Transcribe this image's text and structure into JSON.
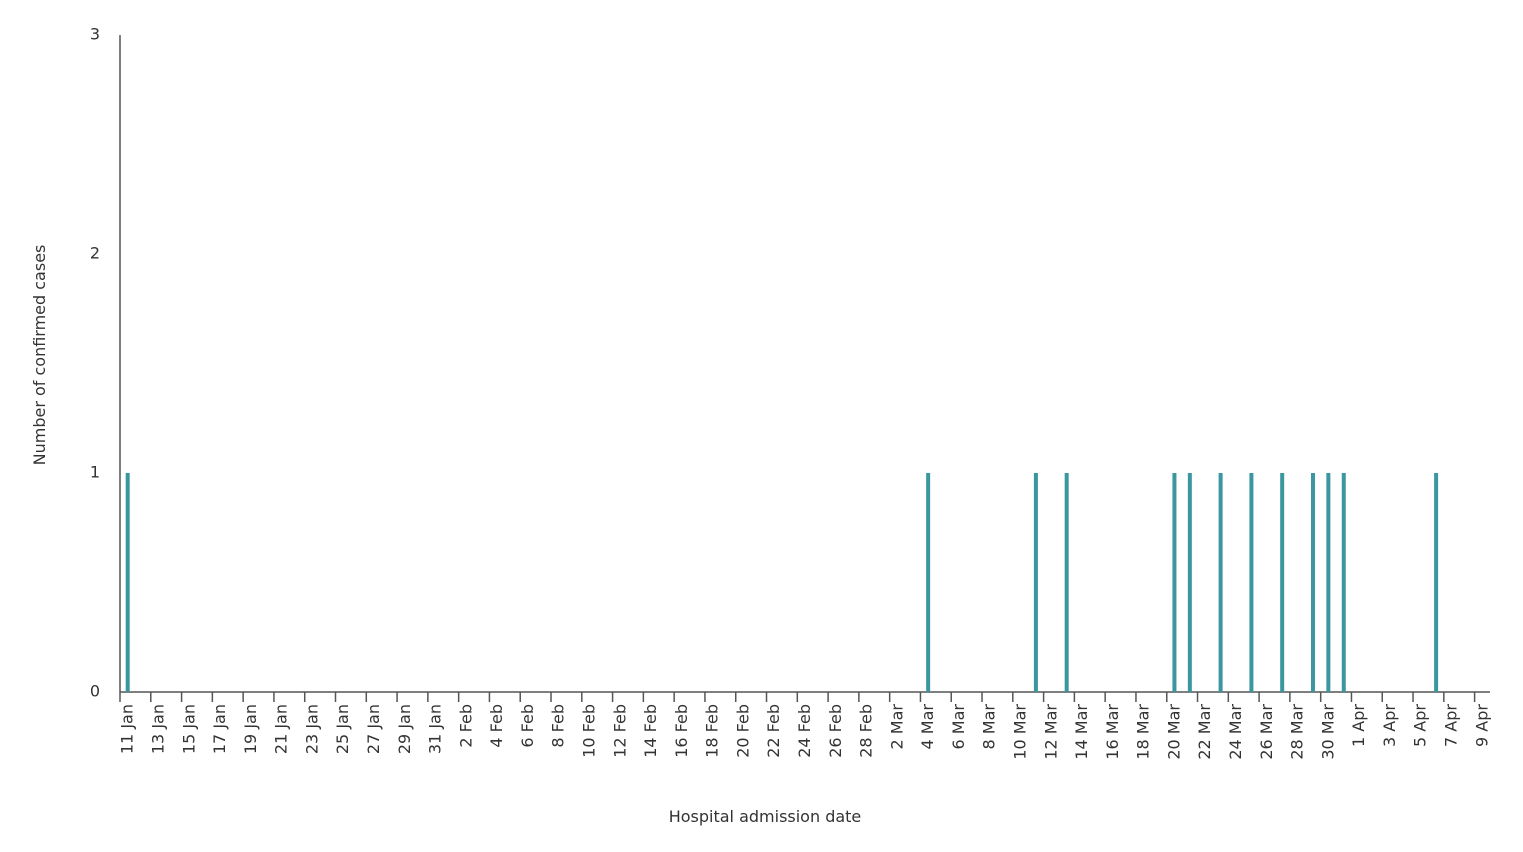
{
  "chart_data": {
    "type": "bar",
    "x_label": "Hospital admission date",
    "y_label": "Number of confirmed cases",
    "categories": [
      "11 Jan",
      null,
      "13 Jan",
      null,
      "15 Jan",
      null,
      "17 Jan",
      null,
      "19 Jan",
      null,
      "21 Jan",
      null,
      "23 Jan",
      null,
      "25 Jan",
      null,
      "27 Jan",
      null,
      "29 Jan",
      null,
      "31 Jan",
      null,
      "2 Feb",
      null,
      "4 Feb",
      null,
      "6 Feb",
      null,
      "8 Feb",
      null,
      "10 Feb",
      null,
      "12 Feb",
      null,
      "14 Feb",
      null,
      "16 Feb",
      null,
      "18 Feb",
      null,
      "20 Feb",
      null,
      "22 Feb",
      null,
      "24 Feb",
      null,
      "26 Feb",
      null,
      "28 Feb",
      null,
      "2 Mar",
      null,
      "4 Mar",
      null,
      "6 Mar",
      null,
      "8 Mar",
      null,
      "10 Mar",
      null,
      "12 Mar",
      null,
      "14 Mar",
      null,
      "16 Mar",
      null,
      "18 Mar",
      null,
      "20 Mar",
      null,
      "22 Mar",
      null,
      "24 Mar",
      null,
      "26 Mar",
      null,
      "28 Mar",
      null,
      "30 Mar",
      null,
      "1 Apr",
      null,
      "3 Apr",
      null,
      "5 Apr",
      null,
      "7 Apr",
      null,
      "9 Apr"
    ],
    "values": [
      1,
      0,
      0,
      0,
      0,
      0,
      0,
      0,
      0,
      0,
      0,
      0,
      0,
      0,
      0,
      0,
      0,
      0,
      0,
      0,
      0,
      0,
      0,
      0,
      0,
      0,
      0,
      0,
      0,
      0,
      0,
      0,
      0,
      0,
      0,
      0,
      0,
      0,
      0,
      0,
      0,
      0,
      0,
      0,
      0,
      0,
      0,
      0,
      0,
      0,
      0,
      0,
      1,
      0,
      0,
      0,
      0,
      0,
      0,
      1,
      0,
      1,
      0,
      0,
      0,
      0,
      0,
      0,
      1,
      1,
      0,
      1,
      0,
      1,
      0,
      1,
      0,
      1,
      1,
      1,
      0,
      0,
      0,
      0,
      0,
      1,
      0,
      0,
      0
    ],
    "color": "#3a969f",
    "ylim": [
      0,
      3
    ],
    "yticks": [
      0,
      1,
      2,
      3
    ],
    "grid": false
  }
}
